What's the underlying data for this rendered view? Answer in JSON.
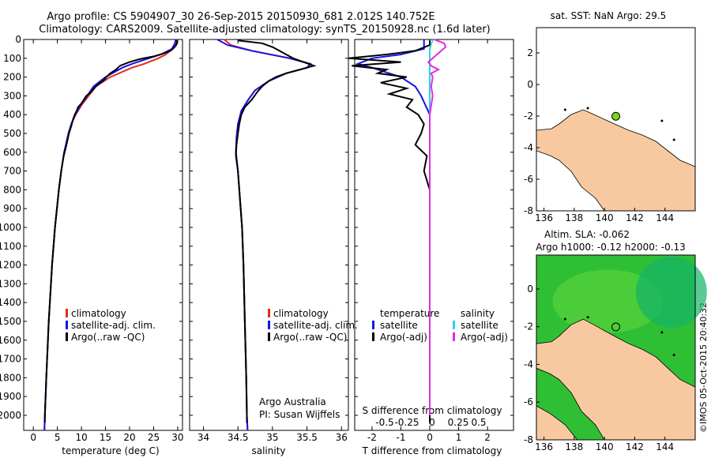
{
  "header": {
    "line1": "Argo profile: CS 5904907_30 26-Sep-2015 20150930_681 2.012S 140.752E",
    "line2": "Climatology: CARS2009. Satellite-adjusted climatology: synTS_20150928.nc (1.6d later)"
  },
  "colors": {
    "climatology": "#e8281e",
    "satellite": "#1414e6",
    "argo": "#000000",
    "sal_satellite": "#26d6e0",
    "sal_argo": "#e628e6",
    "land": "#f8c9a0",
    "ocean_sla": "#2fbf35",
    "marker_sst": "#7ed321"
  },
  "temperature_panel": {
    "xlabel": "temperature (deg C)",
    "legend": [
      "climatology",
      "satellite-adj. clim.",
      "Argo(..raw -QC)"
    ]
  },
  "salinity_panel": {
    "xlabel": "salinity",
    "legend": [
      "climatology",
      "satellite-adj. clim.",
      "Argo(..raw -QC)"
    ],
    "note1": "Argo Australia",
    "note2": "PI: Susan Wijffels"
  },
  "difference_panel": {
    "top_title": "S difference from climatology",
    "bottom_title": "T difference from climatology",
    "legend_temp_header": "temperature",
    "legend_sal_header": "salinity",
    "legend_temp": [
      "satellite",
      "Argo(-adj)"
    ],
    "legend_sal": [
      "satellite",
      "Argo(-adj)"
    ],
    "s_ticks": [
      "-0.5",
      "-0.25",
      "0",
      "0.25",
      "0.5"
    ]
  },
  "map_sst": {
    "title": "sat. SST: NaN Argo: 29.5"
  },
  "map_sla": {
    "title1": "Altim. SLA: -0.062",
    "title2": "Argo h1000: -0.12 h2000: -0.13"
  },
  "credit": "©IMOS 05-Oct-2015 20:40:32",
  "chart_data": [
    {
      "type": "line",
      "name": "temperature",
      "xlabel": "temperature (deg C)",
      "ylabel": "",
      "xlim": [
        -2,
        31
      ],
      "ylim": [
        2080,
        0
      ],
      "xticks": [
        0,
        5,
        10,
        15,
        20,
        25,
        30
      ],
      "yticks": [
        0,
        100,
        200,
        300,
        400,
        500,
        600,
        700,
        800,
        900,
        1000,
        1100,
        1200,
        1300,
        1400,
        1500,
        1600,
        1700,
        1800,
        1900,
        2000
      ],
      "series": [
        {
          "name": "climatology",
          "depth": [
            0,
            20,
            50,
            80,
            100,
            130,
            150,
            200,
            250,
            300,
            350,
            400,
            450,
            500,
            600,
            700,
            800,
            1000,
            1200,
            1500,
            1800,
            2000,
            2080
          ],
          "values": [
            29.8,
            29.6,
            29.0,
            27.5,
            26.0,
            23.0,
            20.5,
            16.0,
            13.0,
            11.5,
            10.0,
            8.8,
            7.9,
            7.3,
            6.4,
            5.8,
            5.3,
            4.5,
            3.9,
            3.2,
            2.7,
            2.4,
            2.3
          ]
        },
        {
          "name": "satellite-adj. clim.",
          "depth": [
            0,
            20,
            50,
            80,
            100,
            130,
            150,
            200,
            250,
            300,
            350,
            400,
            450,
            500,
            600,
            700,
            800,
            1000,
            1200,
            1500,
            1800,
            2000,
            2080
          ],
          "values": [
            29.6,
            29.4,
            28.8,
            26.5,
            24.0,
            20.5,
            18.5,
            15.0,
            12.5,
            11.2,
            9.8,
            8.7,
            7.9,
            7.3,
            6.4,
            5.8,
            5.3,
            4.5,
            3.9,
            3.2,
            2.7,
            2.4,
            2.3
          ]
        },
        {
          "name": "Argo(..raw -QC)",
          "depth": [
            5,
            15,
            30,
            45,
            60,
            75,
            90,
            105,
            120,
            140,
            160,
            180,
            200,
            220,
            240,
            260,
            280,
            300,
            320,
            340,
            360,
            380,
            400,
            430,
            460,
            500,
            560,
            620,
            700,
            800,
            1000,
            1200,
            1500,
            1800,
            2000,
            2040
          ],
          "values": [
            29.8,
            29.9,
            29.7,
            29.2,
            28.5,
            27.0,
            25.0,
            22.0,
            20.0,
            18.0,
            17.2,
            16.0,
            15.2,
            14.5,
            13.4,
            12.6,
            12.0,
            11.0,
            10.5,
            10.0,
            9.3,
            9.0,
            8.6,
            8.2,
            7.9,
            7.4,
            6.9,
            6.3,
            5.8,
            5.3,
            4.5,
            3.9,
            3.2,
            2.7,
            2.4,
            2.4
          ]
        }
      ]
    },
    {
      "type": "line",
      "name": "salinity",
      "xlabel": "salinity",
      "ylabel": "",
      "xlim": [
        33.8,
        36.1
      ],
      "ylim": [
        2080,
        0
      ],
      "xticks": [
        34,
        34.5,
        35,
        35.5,
        36
      ],
      "series": [
        {
          "name": "climatology",
          "depth": [
            0,
            30,
            60,
            100,
            130,
            150,
            180,
            220,
            270,
            320,
            380,
            450,
            520,
            600,
            700,
            800,
            1000,
            1200,
            1500,
            1800,
            2000,
            2080
          ],
          "values": [
            34.3,
            34.4,
            34.7,
            35.25,
            35.55,
            35.5,
            35.2,
            34.95,
            34.75,
            34.65,
            34.55,
            34.5,
            34.48,
            34.47,
            34.5,
            34.52,
            34.56,
            34.58,
            34.6,
            34.62,
            34.63,
            34.64
          ]
        },
        {
          "name": "satellite-adj. clim.",
          "depth": [
            0,
            30,
            60,
            100,
            130,
            150,
            180,
            220,
            270,
            320,
            380,
            450,
            520,
            600,
            700,
            800,
            1000,
            1200,
            1500,
            1800,
            2000,
            2080
          ],
          "values": [
            34.2,
            34.35,
            34.7,
            35.25,
            35.55,
            35.5,
            35.2,
            34.95,
            34.75,
            34.65,
            34.55,
            34.5,
            34.48,
            34.47,
            34.5,
            34.52,
            34.56,
            34.58,
            34.6,
            34.62,
            34.63,
            34.64
          ]
        },
        {
          "name": "Argo(..raw -QC)",
          "depth": [
            5,
            20,
            40,
            60,
            80,
            100,
            120,
            140,
            160,
            180,
            200,
            220,
            250,
            280,
            320,
            360,
            400,
            450,
            500,
            560,
            620,
            700,
            800,
            1000,
            1200,
            1500,
            1800,
            2000,
            2040
          ],
          "values": [
            34.5,
            34.85,
            35.0,
            35.1,
            35.2,
            35.3,
            35.45,
            35.6,
            35.4,
            35.2,
            35.05,
            34.95,
            34.85,
            34.78,
            34.7,
            34.6,
            34.55,
            34.52,
            34.5,
            34.48,
            34.47,
            34.5,
            34.52,
            34.56,
            34.58,
            34.6,
            34.62,
            34.63,
            34.63
          ]
        }
      ]
    },
    {
      "type": "line",
      "name": "difference",
      "xlabel": "T difference from climatology",
      "xlim": [
        -2.6,
        2.9
      ],
      "ylim": [
        2080,
        0
      ],
      "xticks": [
        -2,
        -1,
        0,
        1,
        2
      ],
      "series": [
        {
          "name": "temperature satellite",
          "depth": [
            0,
            50,
            80,
            100,
            130,
            150,
            200,
            250,
            300,
            400,
            500,
            2000
          ],
          "values": [
            -0.2,
            -0.2,
            -1.0,
            -2.0,
            -2.5,
            -2.0,
            -1.0,
            -0.5,
            -0.3,
            0,
            0,
            0
          ]
        },
        {
          "name": "temperature Argo(-adj)",
          "depth": [
            5,
            30,
            60,
            80,
            100,
            120,
            140,
            160,
            180,
            200,
            230,
            260,
            290,
            320,
            360,
            400,
            450,
            500,
            560,
            620,
            700,
            800,
            1000,
            1500,
            2000,
            2040
          ],
          "values": [
            0,
            0,
            -0.5,
            -1.5,
            -2.8,
            -1.0,
            -2.7,
            -1.5,
            -1.8,
            -0.8,
            -1.7,
            -0.8,
            -1.4,
            -0.6,
            -0.8,
            -0.4,
            -0.2,
            -0.3,
            -0.5,
            -0.1,
            -0.2,
            0,
            0,
            0,
            0,
            0
          ]
        },
        {
          "name": "salinity satellite",
          "depth": [
            0,
            50,
            100,
            150,
            200,
            300,
            400,
            2000
          ],
          "values": [
            0.1,
            0,
            0,
            0,
            0,
            0,
            0,
            0
          ]
        },
        {
          "name": "salinity Argo(-adj)",
          "depth": [
            0,
            20,
            40,
            60,
            80,
            100,
            120,
            140,
            160,
            180,
            200,
            250,
            300,
            400,
            500,
            2000
          ],
          "values": [
            0.15,
            0.5,
            0.55,
            0.4,
            0.25,
            0.1,
            -0.05,
            0.05,
            0.3,
            0.05,
            0.1,
            0.05,
            0.1,
            0,
            0,
            0
          ]
        }
      ]
    },
    {
      "type": "map",
      "name": "sat. SST",
      "xlim": [
        135.5,
        146
      ],
      "ylim": [
        -8,
        3.6
      ],
      "xticks": [
        136,
        138,
        140,
        142,
        144
      ],
      "yticks": [
        2,
        0,
        -2,
        -4,
        -6,
        -8
      ],
      "marker": {
        "lon": 140.752,
        "lat": -2.012
      }
    },
    {
      "type": "map",
      "name": "Altim. SLA",
      "xlim": [
        135.5,
        146
      ],
      "ylim": [
        -8,
        1.8
      ],
      "xticks": [
        136,
        138,
        140,
        142,
        144
      ],
      "yticks": [
        0,
        -2,
        -4,
        -6,
        -8
      ],
      "marker": {
        "lon": 140.752,
        "lat": -2.012
      }
    }
  ]
}
